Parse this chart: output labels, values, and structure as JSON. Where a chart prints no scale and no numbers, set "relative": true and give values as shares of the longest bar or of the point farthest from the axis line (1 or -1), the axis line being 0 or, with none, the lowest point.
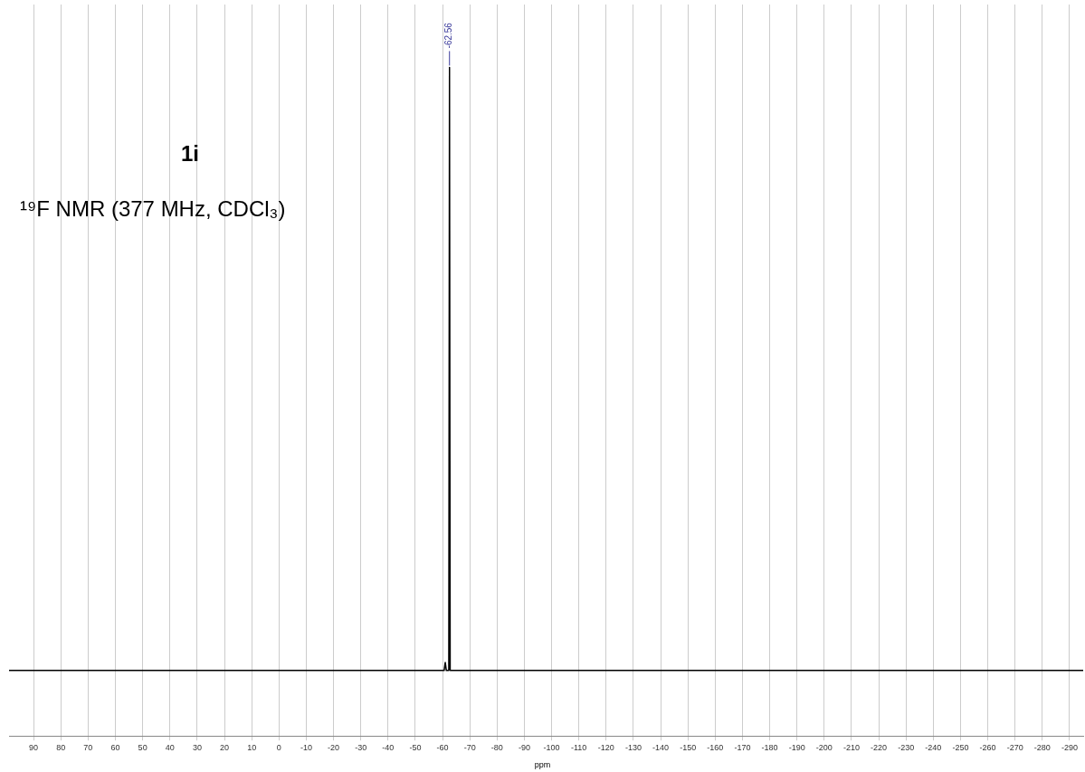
{
  "chart_data": {
    "type": "line",
    "title": "1i",
    "subtitle": "¹⁹F NMR (377 MHz, CDCl₃)",
    "xlabel": "ppm",
    "relative": true,
    "x": [
      99,
      -60.6,
      -61.0,
      -61.4,
      -62.3,
      -62.56,
      -62.8,
      -295
    ],
    "series": [
      {
        "color": "#000000",
        "values": [
          0.098,
          0.098,
          0.11,
          0.098,
          0.098,
          1,
          0.098,
          0.098
        ]
      }
    ],
    "xlim": [
      99,
      -295
    ],
    "xticks": [
      90,
      80,
      70,
      60,
      50,
      40,
      30,
      20,
      10,
      0,
      -10,
      -20,
      -30,
      -40,
      -50,
      -60,
      -70,
      -80,
      -90,
      -100,
      -110,
      -120,
      -130,
      -140,
      -150,
      -160,
      -170,
      -180,
      -190,
      -200,
      -210,
      -220,
      -230,
      -240,
      -250,
      -260,
      -270,
      -280,
      -290
    ],
    "grid": "x",
    "legend": false,
    "tick_labels": "x",
    "marker": "none",
    "line_style": "solid",
    "annotations": [
      {
        "text": "-62.56",
        "x": -62.56,
        "y": 1
      }
    ]
  }
}
